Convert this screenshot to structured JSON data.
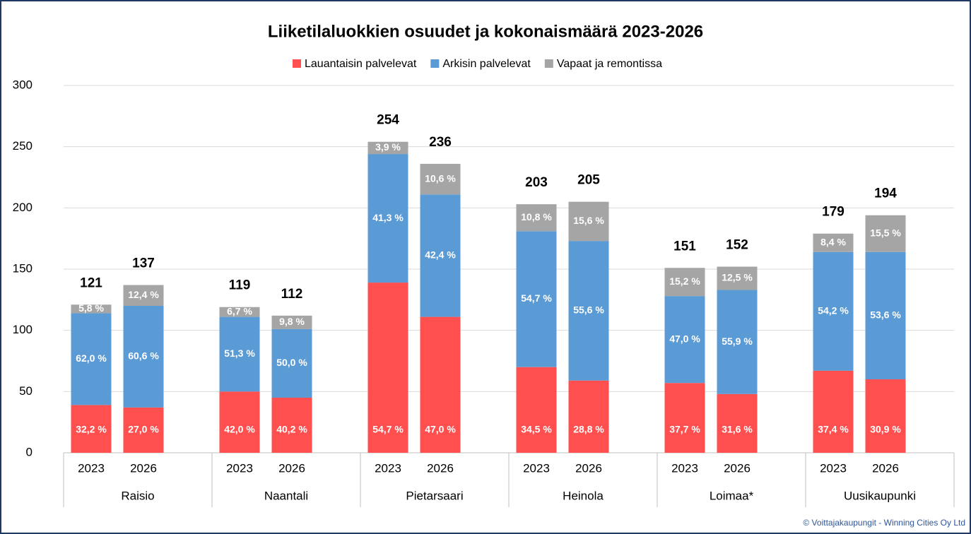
{
  "chart_data": {
    "type": "stacked_bar",
    "title": "Liiketilaluokkien osuudet ja kokonaismäärä 2023-2026",
    "categories": [
      "2023",
      "2026",
      "2023",
      "2026",
      "2023",
      "2026",
      "2023",
      "2026",
      "2023",
      "2026",
      "2023",
      "2026"
    ],
    "groups": [
      "Raisio",
      "Naantali",
      "Pietarsaari",
      "Heinola",
      "Loimaa*",
      "Uusikaupunki"
    ],
    "series": [
      {
        "name": "Lauantaisin palvelevat",
        "color": "#ff4f4f",
        "values": [
          39,
          37,
          50,
          45,
          139,
          111,
          70,
          59,
          57,
          48,
          67,
          60
        ],
        "segment_labels": [
          "32,2 %",
          "27,0 %",
          "42,0 %",
          "40,2 %",
          "54,7 %",
          "47,0 %",
          "34,5 %",
          "28,8 %",
          "37,7 %",
          "31,6 %",
          "37,4 %",
          "30,9 %"
        ]
      },
      {
        "name": "Arkisin palvelevat",
        "color": "#5b9bd5",
        "values": [
          75,
          83,
          61,
          56,
          105,
          100,
          111,
          114,
          71,
          85,
          97,
          104
        ],
        "segment_labels": [
          "62,0 %",
          "60,6 %",
          "51,3 %",
          "50,0 %",
          "41,3 %",
          "42,4 %",
          "54,7 %",
          "55,6 %",
          "47,0 %",
          "55,9 %",
          "54,2 %",
          "53,6 %"
        ]
      },
      {
        "name": "Vapaat ja remontissa",
        "color": "#a5a5a5",
        "values": [
          7,
          17,
          8,
          11,
          10,
          25,
          22,
          32,
          23,
          19,
          15,
          30
        ],
        "segment_labels": [
          "5,8 %",
          "12,4 %",
          "6,7 %",
          "9,8 %",
          "3,9 %",
          "10,6 %",
          "10,8 %",
          "15,6 %",
          "15,2 %",
          "12,5 %",
          "8,4 %",
          "15,5 %"
        ]
      }
    ],
    "totals": [
      121,
      137,
      119,
      112,
      254,
      236,
      203,
      205,
      151,
      152,
      179,
      194
    ],
    "ylim": [
      0,
      300
    ],
    "yticks": [
      0,
      50,
      100,
      150,
      200,
      250,
      300
    ],
    "grid": true,
    "legend": "top",
    "footer": "© Voittajakaupungit - Winning Cities Oy Ltd"
  }
}
